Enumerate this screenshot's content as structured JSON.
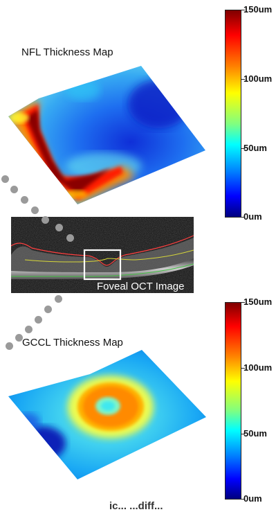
{
  "nfl": {
    "title": "NFL Thickness Map",
    "colorbar": {
      "ticks": [
        "150um",
        "100um",
        "50um",
        "0um"
      ]
    }
  },
  "oct": {
    "label": "Foveal OCT Image"
  },
  "gccl": {
    "title": "GCCL Thickness Map",
    "colorbar": {
      "ticks": [
        "150um",
        "100um",
        "50um",
        "0um"
      ]
    }
  },
  "bottom_caption": "ic... ...diff..."
}
